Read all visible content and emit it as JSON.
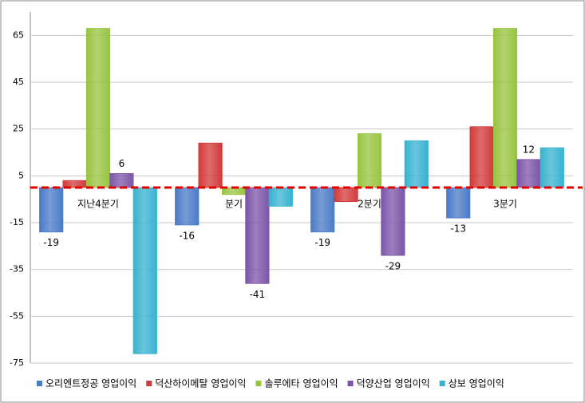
{
  "chart_data": {
    "type": "bar",
    "categories": [
      "지난4분기",
      "분기",
      "2분기",
      "3분기"
    ],
    "series": [
      {
        "name": "오리엔트정공 영업이익",
        "color": "#4a7bc8",
        "values": [
          -19,
          -16,
          -19,
          -13
        ],
        "show_labels": true
      },
      {
        "name": "덕산하이메탈 영업이익",
        "color": "#d23a3a",
        "values": [
          3,
          19,
          -6,
          26
        ],
        "show_labels": false
      },
      {
        "name": "솔루에타 영업이익",
        "color": "#98c440",
        "values": [
          68,
          -3,
          23,
          68
        ],
        "show_labels": false
      },
      {
        "name": "덕양산업 영업이익",
        "color": "#7d55a8",
        "values": [
          6,
          -41,
          -29,
          12
        ],
        "show_labels": true
      },
      {
        "name": "상보 영업이익",
        "color": "#37b3d0",
        "values": [
          -71,
          -8,
          20,
          17
        ],
        "show_labels": false
      }
    ],
    "ylim": [
      -75,
      75
    ],
    "yticks": [
      65,
      45,
      25,
      5,
      -15,
      -35,
      -55,
      -75
    ],
    "grid": true,
    "reference_line": {
      "value": 0,
      "color": "#e00000"
    },
    "legend": "bottom"
  }
}
